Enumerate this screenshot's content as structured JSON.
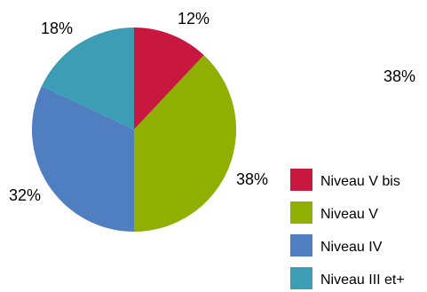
{
  "chart_data": {
    "type": "pie",
    "title": "",
    "slices": [
      {
        "label": "Niveau V bis",
        "value": 12,
        "display": "12%",
        "color": "#C8183F"
      },
      {
        "label": "Niveau V",
        "value": 38,
        "display": "38%",
        "color": "#8FB000"
      },
      {
        "label": "Niveau IV",
        "value": 32,
        "display": "32%",
        "color": "#4F7EC1"
      },
      {
        "label": "Niveau III et+",
        "value": 18,
        "display": "18%",
        "color": "#3C9DB5"
      }
    ],
    "stray_label": "38%",
    "legend_position": "bottom-right"
  }
}
